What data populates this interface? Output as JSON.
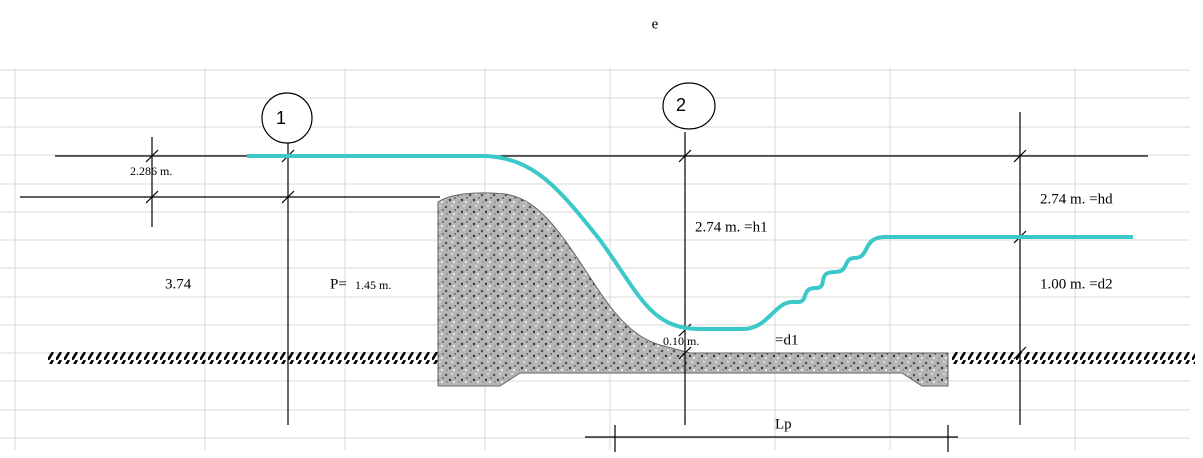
{
  "header": {
    "title": "e"
  },
  "sections": [
    {
      "label": "1"
    },
    {
      "label": "2"
    }
  ],
  "labels": {
    "head": "2.286 m.",
    "total_height": "3.74",
    "p_prefix": "P=",
    "p_value": "1.45 m.",
    "h1": "2.74 m. =h1",
    "d1_value": "0.10 m.",
    "d1_name": "=d1",
    "hd": "2.74 m. =hd",
    "d2": "1.00 m. =d2",
    "lp": "Lp"
  }
}
